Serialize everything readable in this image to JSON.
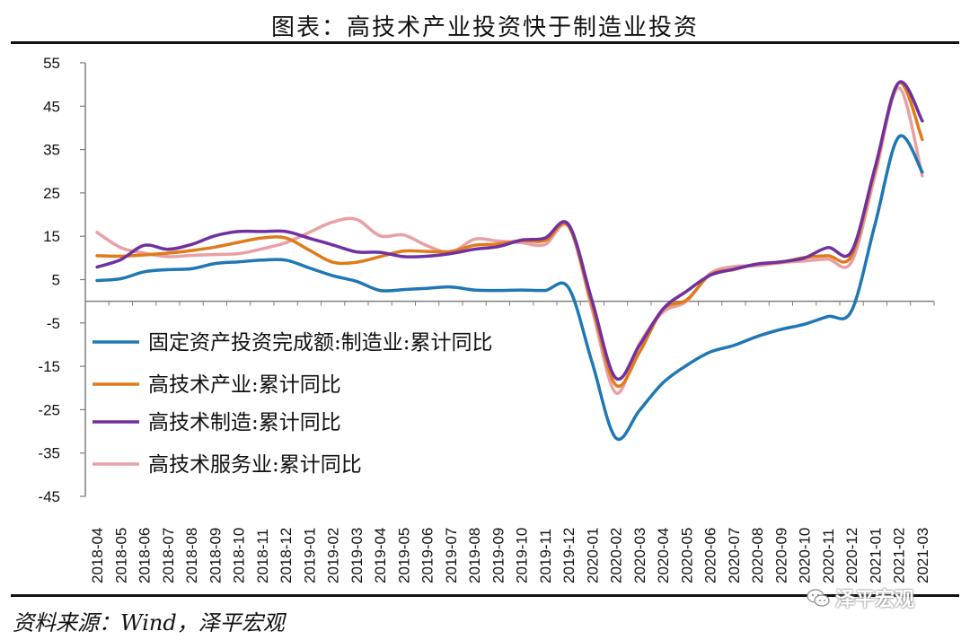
{
  "title": "图表：高技术产业投资快于制造业投资",
  "source": "资料来源：Wind，泽平宏观",
  "watermark": "泽平宏观",
  "chart_data": {
    "type": "line",
    "x": [
      "2018-04",
      "2018-05",
      "2018-06",
      "2018-07",
      "2018-08",
      "2018-09",
      "2018-10",
      "2018-11",
      "2018-12",
      "2019-01",
      "2019-02",
      "2019-03",
      "2019-04",
      "2019-05",
      "2019-06",
      "2019-07",
      "2019-08",
      "2019-09",
      "2019-10",
      "2019-11",
      "2019-12",
      "2020-01",
      "2020-02",
      "2020-03",
      "2020-04",
      "2020-05",
      "2020-06",
      "2020-07",
      "2020-08",
      "2020-09",
      "2020-10",
      "2020-11",
      "2020-12",
      "2021-01",
      "2021-02",
      "2021-03"
    ],
    "ylim": [
      -45,
      55
    ],
    "yticks": [
      55,
      45,
      35,
      25,
      15,
      5,
      -5,
      -15,
      -25,
      -35,
      -45
    ],
    "legend_position": "left-middle",
    "series": [
      {
        "name": "固定资产投资完成额:制造业:累计同比",
        "color": "#1f77b4",
        "values": [
          4.8,
          5.2,
          6.8,
          7.3,
          7.5,
          8.7,
          9.1,
          9.5,
          9.5,
          null,
          5.9,
          4.6,
          2.5,
          2.7,
          3.0,
          3.3,
          2.6,
          2.5,
          2.6,
          2.5,
          3.1,
          null,
          -31.5,
          -25.2,
          -18.8,
          -14.8,
          -11.7,
          -10.2,
          -8.1,
          -6.5,
          -5.3,
          -3.5,
          -2.2,
          null,
          37.9,
          29.8
        ]
      },
      {
        "name": "高技术产业:累计同比",
        "color": "#e07b1a",
        "values": [
          10.5,
          10.4,
          10.7,
          11.1,
          11.7,
          12.5,
          13.6,
          14.6,
          14.6,
          null,
          9.0,
          9.0,
          10.3,
          11.6,
          11.5,
          11.5,
          12.9,
          13.2,
          14.0,
          14.0,
          17.3,
          null,
          -19.3,
          -11.8,
          -1.9,
          0.3,
          6.1,
          7.3,
          8.6,
          9.0,
          10.1,
          10.5,
          10.5,
          null,
          50.4,
          37.3
        ]
      },
      {
        "name": "高技术制造:累计同比",
        "color": "#7030a0",
        "values": [
          7.9,
          9.6,
          12.9,
          12.0,
          13.1,
          15.1,
          16.1,
          16.1,
          16.1,
          null,
          13.0,
          11.4,
          11.3,
          10.3,
          10.4,
          11.0,
          12.0,
          12.6,
          14.1,
          14.6,
          17.7,
          null,
          -17.7,
          -10.2,
          -1.8,
          2.3,
          6.0,
          7.4,
          8.6,
          9.1,
          10.0,
          12.4,
          11.5,
          null,
          50.4,
          41.6
        ]
      },
      {
        "name": "高技术服务业:累计同比",
        "color": "#e8a0a4",
        "values": [
          15.9,
          12.4,
          11.1,
          10.3,
          10.6,
          10.8,
          11.0,
          12.1,
          13.5,
          null,
          18.3,
          18.9,
          15.1,
          15.3,
          12.8,
          11.3,
          14.3,
          13.9,
          13.5,
          13.1,
          17.2,
          null,
          -21.1,
          -9.8,
          -2.5,
          0.0,
          6.4,
          8.0,
          8.2,
          8.9,
          9.3,
          9.7,
          9.1,
          null,
          49.2,
          28.9
        ]
      }
    ]
  }
}
